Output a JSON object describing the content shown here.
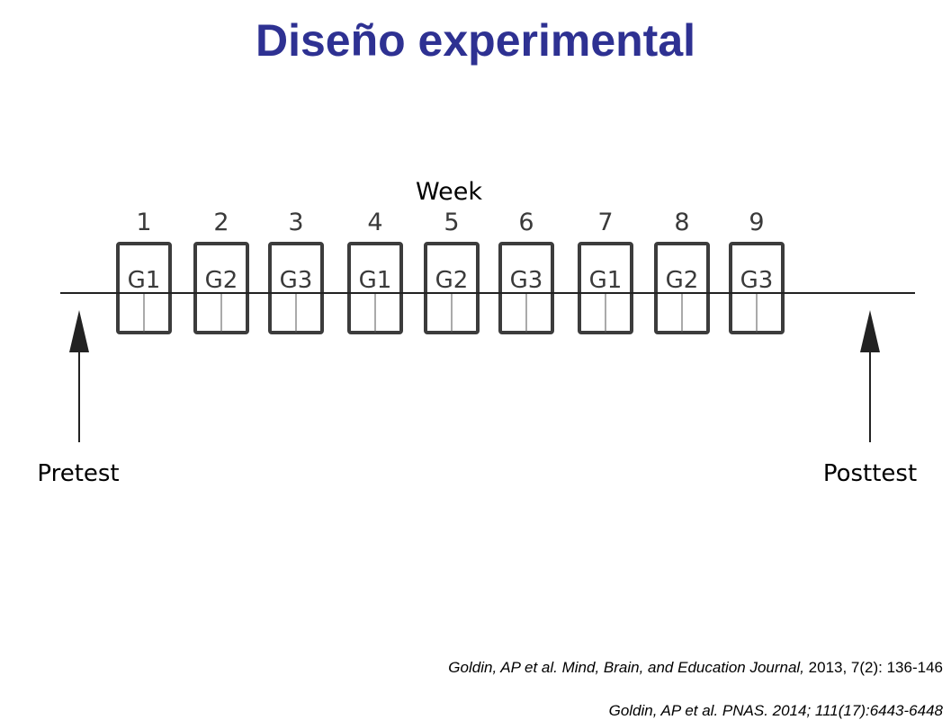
{
  "slide": {
    "title": "Diseño experimental",
    "title_color": "#2e3192"
  },
  "diagram": {
    "week_label": "Week",
    "weeks": [
      "1",
      "2",
      "3",
      "4",
      "5",
      "6",
      "7",
      "8",
      "9"
    ],
    "groups": [
      "G1",
      "G2",
      "G3",
      "G1",
      "G2",
      "G3",
      "G1",
      "G2",
      "G3"
    ],
    "pretest_label": "Pretest",
    "posttest_label": "Posttest",
    "box_color": "#3c3c3c",
    "text_color": "#3a3a3a"
  },
  "citations": [
    {
      "italic": "Goldin, AP et al. Mind, Brain, and Education Journal,",
      "normal": " 2013, 7(2): 136-146"
    },
    {
      "italic": "Goldin, AP et al. PNAS. 2014; 111(17):6443-6448",
      "normal": ""
    }
  ]
}
